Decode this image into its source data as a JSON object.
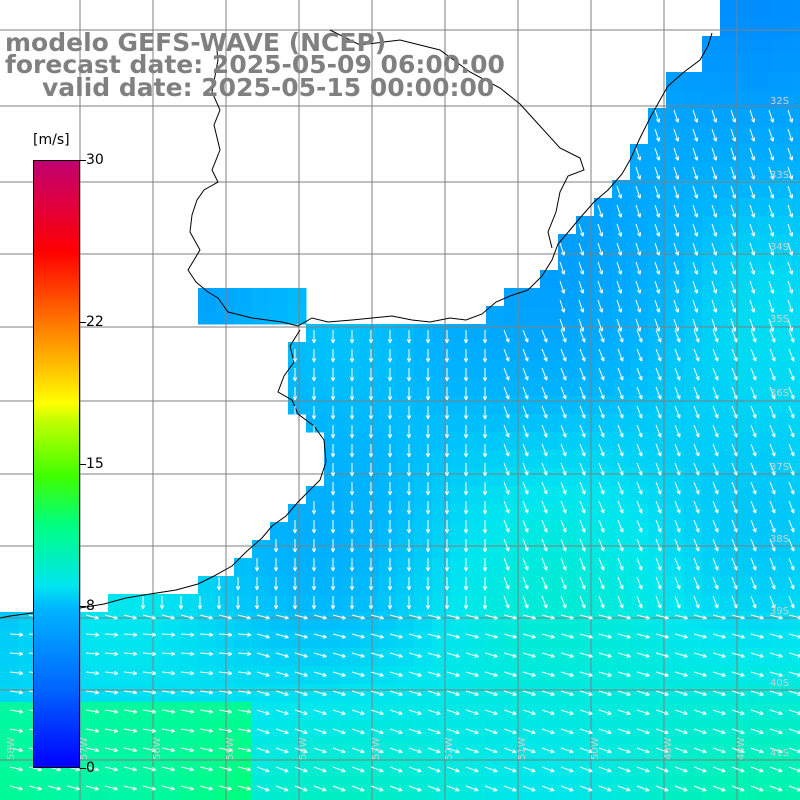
{
  "title": {
    "line1": "modelo GEFS-WAVE (NCEP)",
    "line2": "forecast date: 2025-05-09 06:00:00",
    "line3": "valid date: 2025-05-15 00:00:00"
  },
  "colorbar": {
    "units": "[m/s]",
    "labels": [
      "30",
      "22",
      "15",
      "8",
      "0"
    ],
    "label_values": [
      30,
      22,
      15,
      8,
      0
    ],
    "min": 0,
    "max": 30
  },
  "map": {
    "field": "wind speed with direction arrows",
    "land_color": "#ffffff",
    "coastline_color": "#000000",
    "grid_color": "#7f7f7f",
    "arrow_color": "#ffffff",
    "lon_labels": [
      "58W",
      "57W",
      "56W",
      "55W",
      "54W",
      "53W",
      "52W",
      "51W",
      "50W",
      "49W",
      "48W"
    ],
    "lat_labels": [
      "32S",
      "33S",
      "34S",
      "35S",
      "36S",
      "37S",
      "38S",
      "39S",
      "40S",
      "41S"
    ]
  }
}
